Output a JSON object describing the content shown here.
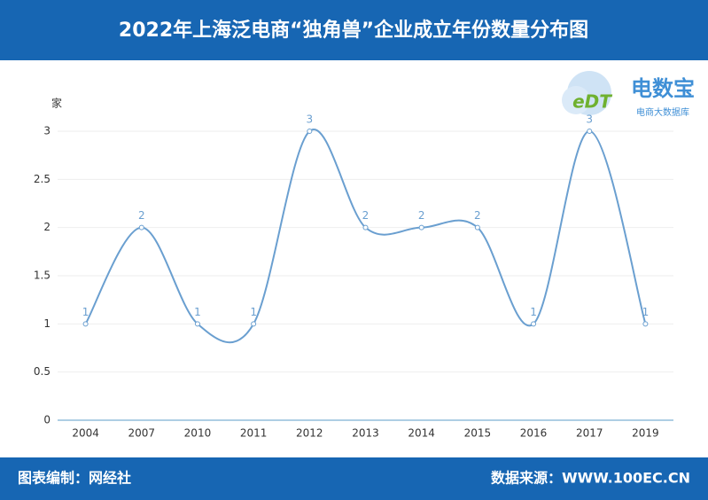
{
  "chart_data": {
    "type": "line",
    "title": "2022年上海泛电商“独角兽”企业成立年份数量分布图",
    "y_label": "家",
    "categories": [
      "2004",
      "2007",
      "2010",
      "2011",
      "2012",
      "2013",
      "2014",
      "2015",
      "2016",
      "2017",
      "2019"
    ],
    "values": [
      1,
      2,
      1,
      1,
      3,
      2,
      2,
      2,
      1,
      3,
      1
    ],
    "color": "#6a9fd0",
    "ylim": [
      0,
      3
    ],
    "yticks": [
      0,
      0.5,
      1,
      1.5,
      2,
      2.5,
      3
    ],
    "grid": true
  },
  "logo": {
    "mark": "eDT",
    "name": "电数宝",
    "tagline": "电商大数据库"
  },
  "footer": {
    "credit": "图表编制：网经社",
    "source": "数据来源：WWW.100EC.CN"
  }
}
